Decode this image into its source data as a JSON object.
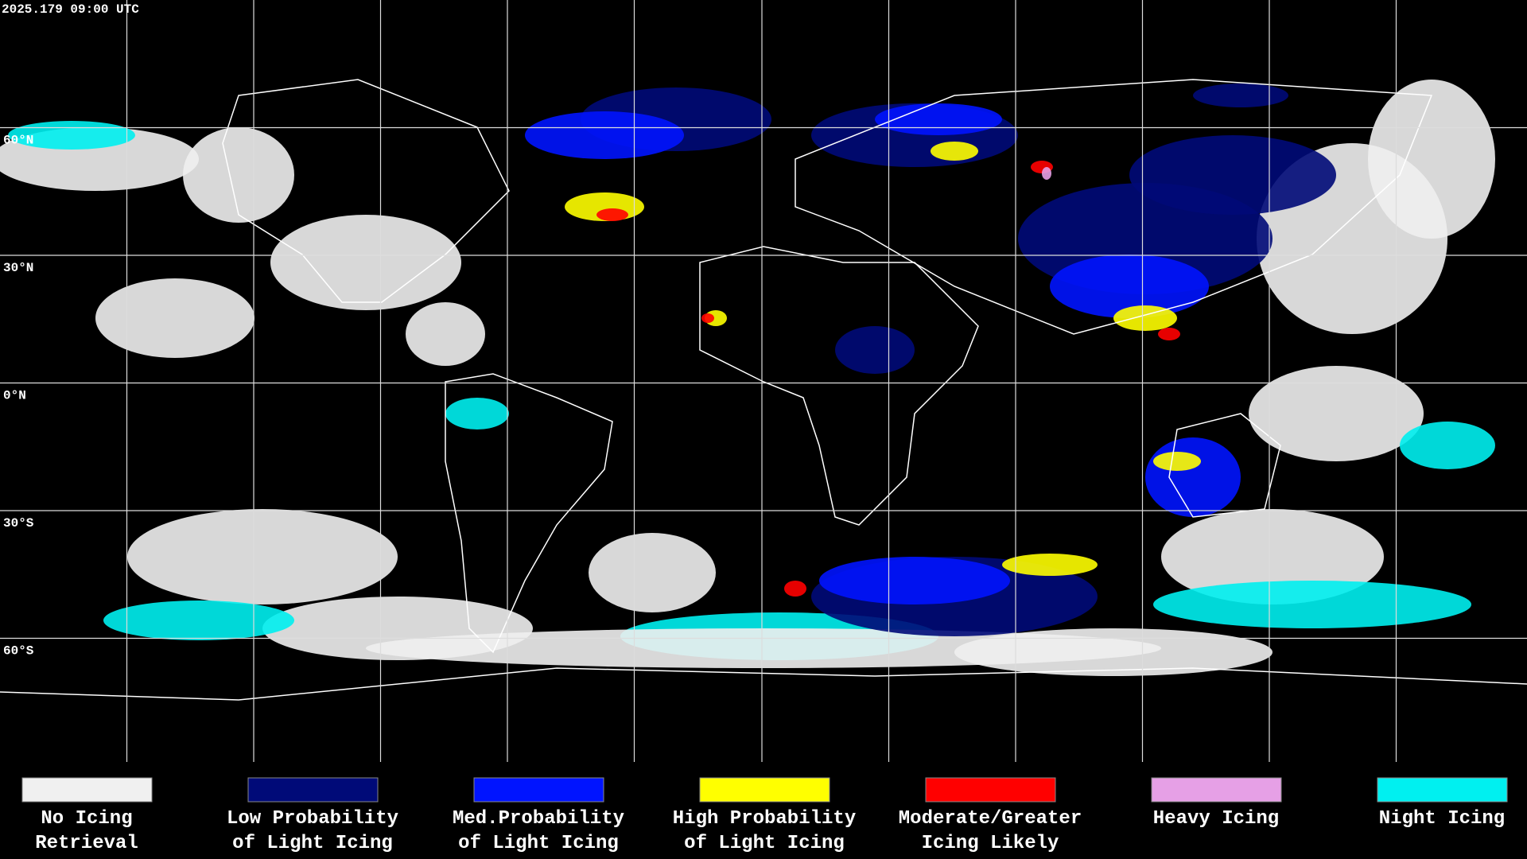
{
  "header": {
    "timestamp": "2025.179 09:00 UTC"
  },
  "map": {
    "latitude_labels": [
      "60°N",
      "30°N",
      "0°N",
      "30°S",
      "60°S"
    ]
  },
  "legend": [
    {
      "lines": [
        "No Icing",
        "Retrieval"
      ],
      "color": "#f0f0f0"
    },
    {
      "lines": [
        "Low Probability",
        "of Light Icing"
      ],
      "color": "#000a78"
    },
    {
      "lines": [
        "Med.Probability",
        "of Light Icing"
      ],
      "color": "#0014ff"
    },
    {
      "lines": [
        "High Probability",
        "of Light Icing"
      ],
      "color": "#ffff00"
    },
    {
      "lines": [
        "Moderate/Greater",
        "Icing Likely"
      ],
      "color": "#ff0000"
    },
    {
      "lines": [
        "Heavy Icing"
      ],
      "color": "#e6a0e6"
    },
    {
      "lines": [
        "Night Icing"
      ],
      "color": "#00f0f0"
    }
  ]
}
